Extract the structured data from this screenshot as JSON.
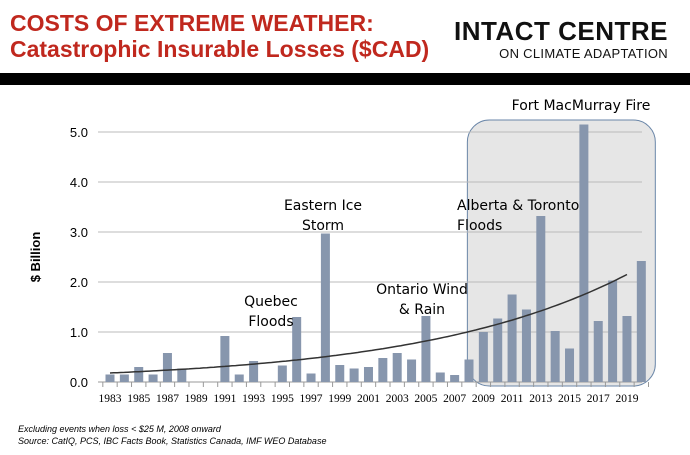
{
  "header": {
    "title_line1": "COSTS OF EXTREME WEATHER:",
    "title_line2": "Catastrophic Insurable Losses ($CAD)",
    "logo_line1": "INTACT CENTRE",
    "logo_line2": "ON CLIMATE ADAPTATION"
  },
  "footnotes": [
    "Excluding events when loss < $25 M, 2008 onward",
    "Source: CatIQ, PCS, IBC Facts Book, Statistics Canada, IMF WEO Database"
  ],
  "chart_data": {
    "type": "bar",
    "ylabel": "$ Billion",
    "ylim": [
      0,
      5.0
    ],
    "yticks": [
      "0.0",
      "1.0",
      "2.0",
      "3.0",
      "4.0",
      "5.0"
    ],
    "grid": true,
    "x": [
      1983,
      1984,
      1985,
      1986,
      1987,
      1988,
      1989,
      1990,
      1991,
      1992,
      1993,
      1994,
      1995,
      1996,
      1997,
      1998,
      1999,
      2000,
      2001,
      2002,
      2003,
      2004,
      2005,
      2006,
      2007,
      2008,
      2009,
      2010,
      2011,
      2012,
      2013,
      2014,
      2015,
      2016,
      2017,
      2018,
      2019,
      2020
    ],
    "xtick_labels": [
      "1983",
      "1985",
      "1987",
      "1989",
      "1991",
      "1993",
      "1995",
      "1997",
      "1999",
      "2001",
      "2003",
      "2005",
      "2007",
      "2009",
      "2011",
      "2013",
      "2015",
      "2017",
      "2019"
    ],
    "values": [
      0.15,
      0.15,
      0.3,
      0.15,
      0.58,
      0.27,
      0,
      0,
      0.92,
      0.15,
      0.42,
      0,
      0.33,
      1.3,
      0.17,
      2.97,
      0.34,
      0.27,
      0.3,
      0.48,
      0.58,
      0.45,
      1.32,
      0.19,
      0.14,
      0.45,
      1.0,
      1.27,
      1.75,
      1.45,
      3.32,
      1.02,
      0.67,
      5.15,
      1.22,
      2.03,
      1.32,
      2.42
    ],
    "bar_color": "#8796ad",
    "trendline": {
      "type": "exponential",
      "start": {
        "x": 1983,
        "y": 0.18
      },
      "end": {
        "x": 2019,
        "y": 2.15
      },
      "color": "#333333"
    },
    "highlight": {
      "from": 2009,
      "to": 2020,
      "color": "#e6e6e6",
      "border": "#6a86a8"
    },
    "annotations": [
      {
        "text": [
          "Eastern Ice",
          "Storm"
        ],
        "x": 1998
      },
      {
        "text": [
          "Quebec",
          "Floods"
        ],
        "x": 1996
      },
      {
        "text": [
          "Ontario Wind",
          "& Rain"
        ],
        "x": 2005
      },
      {
        "text": [
          "Alberta & Toronto",
          "Floods"
        ],
        "x": 2013
      },
      {
        "text": [
          "Fort MacMurray Fire"
        ],
        "x": 2016
      }
    ]
  }
}
